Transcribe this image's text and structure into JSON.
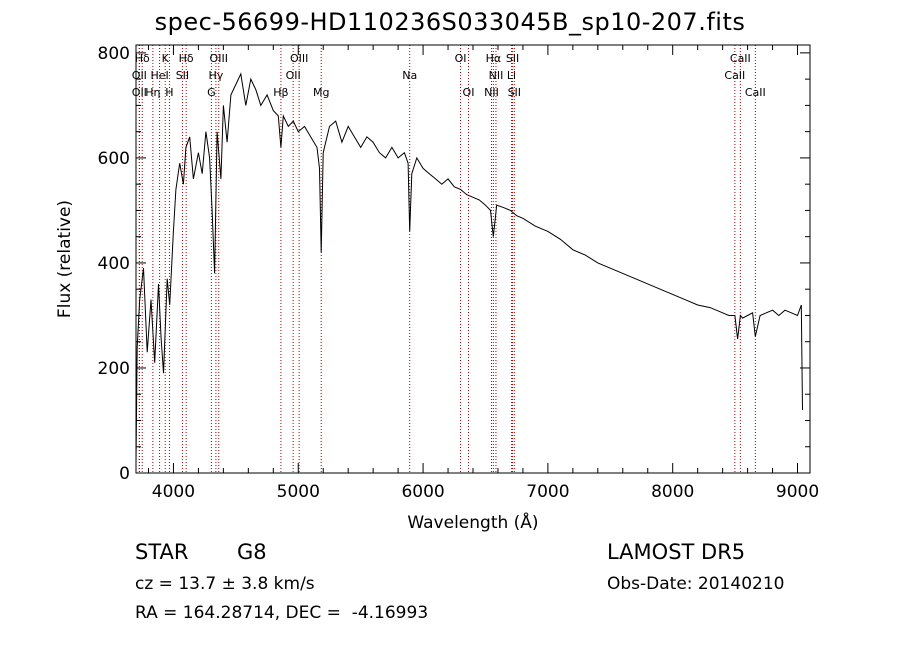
{
  "title": "spec-56699-HD110236S033045B_sp10-207.fits",
  "footer": {
    "object_class": "STAR",
    "subclass": "G8",
    "survey": "LAMOST DR5",
    "redshift": "cz = 13.7 ± 3.8 km/s",
    "obs_date": "Obs-Date: 20140210",
    "coordinates": "RA = 164.28714, DEC =  -4.16993"
  },
  "chart_data": {
    "type": "line",
    "title": "spec-56699-HD110236S033045B_sp10-207.fits",
    "xlabel": "Wavelength (Å)",
    "ylabel": "Flux (relative)",
    "xlim": [
      3700,
      9100
    ],
    "ylim": [
      0,
      815
    ],
    "xticks": [
      4000,
      5000,
      6000,
      7000,
      8000,
      9000
    ],
    "yticks": [
      0,
      200,
      400,
      600,
      800
    ],
    "grid": false,
    "line_color": "#000000",
    "marker_color": "#aa0000",
    "series": [
      {
        "x": [
          3700,
          3710,
          3730,
          3760,
          3790,
          3820,
          3850,
          3880,
          3900,
          3920,
          3950,
          3970,
          4000,
          4020,
          4050,
          4080,
          4100,
          4130,
          4160,
          4200,
          4230,
          4260,
          4290,
          4310,
          4330,
          4350,
          4380,
          4400,
          4430,
          4460,
          4500,
          4540,
          4580,
          4620,
          4660,
          4700,
          4750,
          4800,
          4840,
          4861,
          4880,
          4920,
          4960,
          5000,
          5050,
          5100,
          5150,
          5170,
          5184,
          5200,
          5250,
          5300,
          5350,
          5400,
          5450,
          5500,
          5550,
          5600,
          5650,
          5700,
          5750,
          5800,
          5850,
          5880,
          5893,
          5910,
          5950,
          6000,
          6050,
          6100,
          6150,
          6200,
          6250,
          6300,
          6350,
          6400,
          6450,
          6500,
          6540,
          6563,
          6590,
          6650,
          6700,
          6750,
          6800,
          6900,
          7000,
          7100,
          7200,
          7300,
          7400,
          7500,
          7600,
          7700,
          7800,
          7900,
          8000,
          8100,
          8200,
          8300,
          8400,
          8450,
          8498,
          8520,
          8542,
          8560,
          8600,
          8640,
          8662,
          8700,
          8750,
          8800,
          8850,
          8900,
          8950,
          9000,
          9030,
          9040
        ],
        "y": [
          20,
          240,
          330,
          390,
          230,
          330,
          210,
          360,
          260,
          190,
          370,
          320,
          460,
          540,
          590,
          550,
          620,
          640,
          560,
          610,
          570,
          650,
          600,
          500,
          380,
          650,
          560,
          700,
          630,
          720,
          740,
          760,
          700,
          750,
          730,
          700,
          720,
          690,
          680,
          620,
          680,
          660,
          670,
          650,
          660,
          640,
          620,
          580,
          420,
          610,
          660,
          670,
          630,
          660,
          640,
          620,
          640,
          630,
          610,
          600,
          620,
          600,
          610,
          590,
          460,
          570,
          600,
          580,
          570,
          560,
          550,
          560,
          545,
          540,
          530,
          525,
          520,
          510,
          500,
          450,
          510,
          505,
          500,
          490,
          485,
          470,
          460,
          445,
          425,
          415,
          400,
          390,
          380,
          370,
          360,
          350,
          340,
          330,
          320,
          315,
          305,
          300,
          300,
          255,
          300,
          295,
          300,
          305,
          260,
          300,
          305,
          310,
          300,
          310,
          305,
          300,
          320,
          120
        ]
      }
    ],
    "line_markers": [
      {
        "label": "Hδ",
        "x": 3750,
        "row": 0
      },
      {
        "label": "K",
        "x": 3934,
        "row": 0
      },
      {
        "label": "Hδ",
        "x": 4102,
        "row": 0
      },
      {
        "label": "OIII",
        "x": 4363,
        "row": 0
      },
      {
        "label": "OIII",
        "x": 5007,
        "row": 0
      },
      {
        "label": "OI",
        "x": 6300,
        "row": 0
      },
      {
        "label": "Hα",
        "x": 6563,
        "row": 0
      },
      {
        "label": "SII",
        "x": 6717,
        "row": 0
      },
      {
        "label": "CaII",
        "x": 8542,
        "row": 0
      },
      {
        "label": "OII",
        "x": 3727,
        "row": 1
      },
      {
        "label": "HeI",
        "x": 3889,
        "row": 1
      },
      {
        "label": "SII",
        "x": 4072,
        "row": 1
      },
      {
        "label": "Hγ",
        "x": 4340,
        "row": 1
      },
      {
        "label": "OII",
        "x": 4959,
        "row": 1
      },
      {
        "label": "Na",
        "x": 5893,
        "row": 1
      },
      {
        "label": "NII",
        "x": 6584,
        "row": 1
      },
      {
        "label": "Li",
        "x": 6708,
        "row": 1
      },
      {
        "label": "CaII",
        "x": 8498,
        "row": 1
      },
      {
        "label": "OII",
        "x": 3727,
        "row": 2
      },
      {
        "label": "Hη",
        "x": 3835,
        "row": 2
      },
      {
        "label": "H",
        "x": 3968,
        "row": 2
      },
      {
        "label": "G",
        "x": 4304,
        "row": 2
      },
      {
        "label": "Hβ",
        "x": 4861,
        "row": 2
      },
      {
        "label": "Mg",
        "x": 5184,
        "row": 2
      },
      {
        "label": "OI",
        "x": 6364,
        "row": 2
      },
      {
        "label": "NII",
        "x": 6548,
        "row": 2
      },
      {
        "label": "SII",
        "x": 6731,
        "row": 2
      },
      {
        "label": "CaII",
        "x": 8662,
        "row": 2
      }
    ]
  }
}
